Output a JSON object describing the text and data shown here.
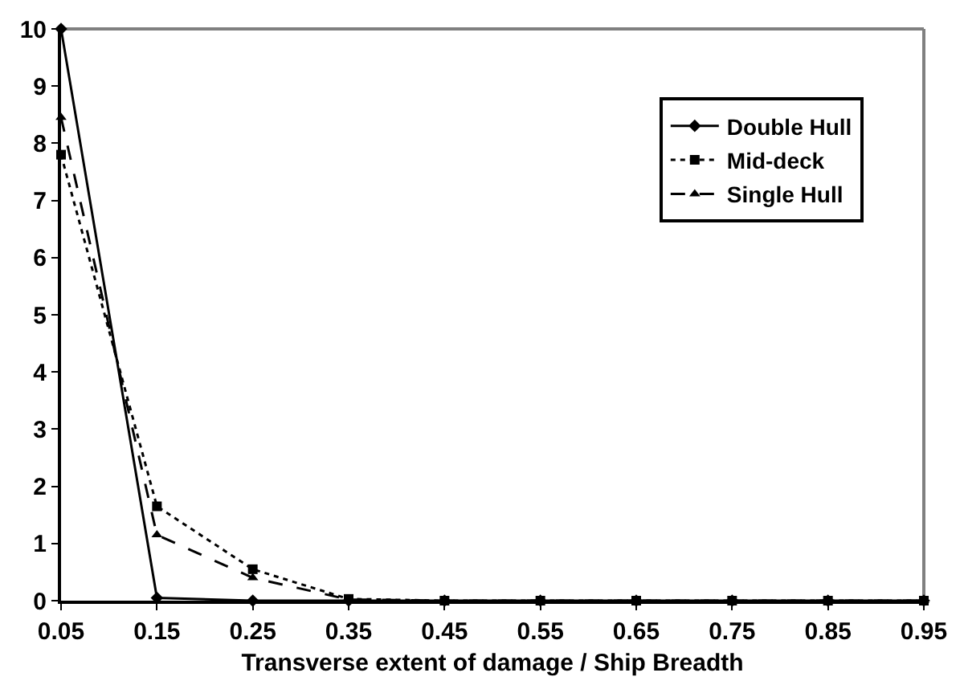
{
  "chart_data": {
    "type": "line",
    "xlabel": "Transverse extent of damage / Ship Breadth",
    "x": [
      0.05,
      0.15,
      0.25,
      0.35,
      0.45,
      0.55,
      0.65,
      0.75,
      0.85,
      0.95
    ],
    "xlim": [
      0.05,
      0.95
    ],
    "xticks": [
      0.05,
      0.15,
      0.25,
      0.35,
      0.45,
      0.55,
      0.65,
      0.75,
      0.85,
      0.95
    ],
    "ylim": [
      0,
      10
    ],
    "yticks": [
      0,
      1,
      2,
      3,
      4,
      5,
      6,
      7,
      8,
      9,
      10
    ],
    "grid": false,
    "legend": "top right",
    "series": [
      {
        "name": "Double Hull",
        "color": "#000000",
        "marker": "diamond",
        "line_style": "solid",
        "values": [
          10,
          0.05,
          0,
          0,
          0,
          0,
          0,
          0,
          0,
          0
        ]
      },
      {
        "name": "Mid-deck",
        "color": "#000000",
        "marker": "square",
        "line_style": "dotted",
        "values": [
          7.8,
          1.65,
          0.55,
          0.03,
          0,
          0,
          0,
          0,
          0,
          0
        ]
      },
      {
        "name": "Single Hull",
        "color": "#000000",
        "marker": "triangle",
        "line_style": "dashed",
        "values": [
          8.45,
          1.15,
          0.4,
          0.02,
          0,
          0,
          0,
          0,
          0,
          0
        ]
      }
    ]
  }
}
